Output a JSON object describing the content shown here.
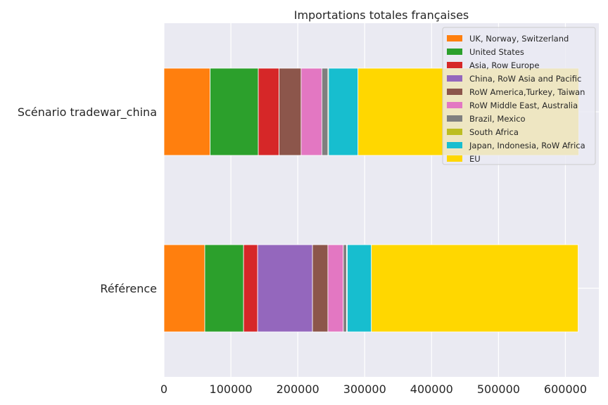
{
  "chart_data": {
    "type": "bar",
    "orientation": "horizontal",
    "stacked": true,
    "title": "Importations totales françaises",
    "xlabel": "",
    "ylabel": "",
    "xlim": [
      0,
      650000
    ],
    "xticks": [
      "0",
      "100000",
      "200000",
      "300000",
      "400000",
      "500000",
      "600000"
    ],
    "xtick_values": [
      0,
      100000,
      200000,
      300000,
      400000,
      500000,
      600000
    ],
    "categories": [
      "Référence",
      "Scénario tradewar_china"
    ],
    "grid": true,
    "legend_position": "top-right",
    "series": [
      {
        "name": "UK, Norway, Switzerland",
        "color": "#ff7f0e",
        "values": [
          61000,
          69000
        ]
      },
      {
        "name": "United States",
        "color": "#2ca02c",
        "values": [
          58000,
          72000
        ]
      },
      {
        "name": "Asia, Row Europe",
        "color": "#d62728",
        "values": [
          21000,
          31000
        ]
      },
      {
        "name": "China, RoW Asia and Pacific",
        "color": "#9467bd",
        "values": [
          82000,
          0
        ]
      },
      {
        "name": "RoW America,Turkey, Taiwan",
        "color": "#8c564b",
        "values": [
          23000,
          33000
        ]
      },
      {
        "name": "RoW Middle East, Australia",
        "color": "#e377c2",
        "values": [
          23000,
          31000
        ]
      },
      {
        "name": "Brazil, Mexico",
        "color": "#7f7f7f",
        "values": [
          5000,
          9000
        ]
      },
      {
        "name": "South Africa",
        "color": "#bcbd22",
        "values": [
          1000,
          1000
        ]
      },
      {
        "name": "Japan, Indonesia, RoW Africa",
        "color": "#17becf",
        "values": [
          36000,
          44000
        ]
      },
      {
        "name": "EU",
        "color": "#ffd700",
        "values": [
          309000,
          330000
        ]
      }
    ]
  }
}
